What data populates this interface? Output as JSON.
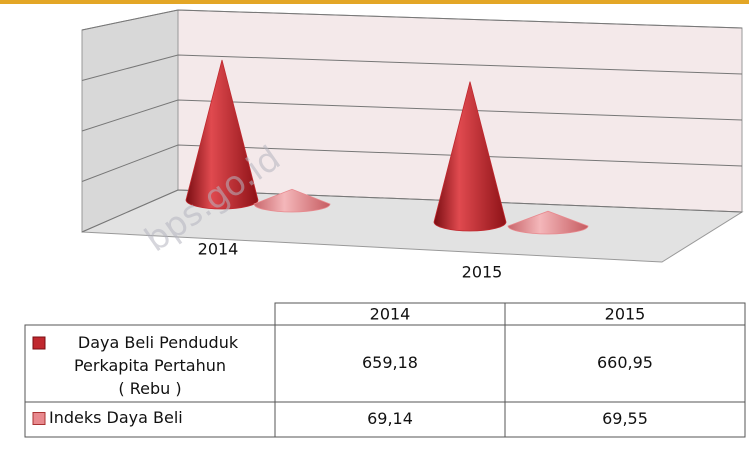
{
  "chart_data": {
    "type": "cone3d",
    "categories": [
      "2014",
      "2015"
    ],
    "series": [
      {
        "name": "Daya Beli Penduduk Perkapita Pertahun ( Rebu )",
        "color": "#c0282e",
        "values": [
          659.18,
          660.95
        ],
        "value_labels": [
          "659,18",
          "660,95"
        ]
      },
      {
        "name": "Indeks Daya Beli",
        "color": "#e8898e",
        "values": [
          69.14,
          69.55
        ],
        "value_labels": [
          "69,14",
          "69,55"
        ]
      }
    ],
    "ylim": [
      0,
      800
    ],
    "yticks": [
      0,
      200,
      400,
      600,
      800
    ],
    "grid": true,
    "watermark": "bps.go.id"
  }
}
